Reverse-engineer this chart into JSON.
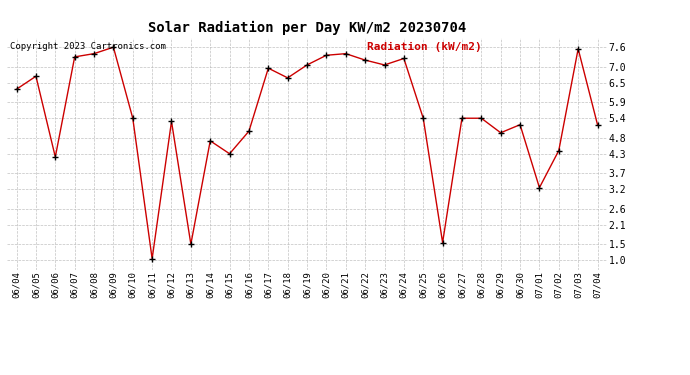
{
  "title": "Solar Radiation per Day KW/m2 20230704",
  "copyright": "Copyright 2023 Cartronics.com",
  "legend_label": "Radiation (kW/m2)",
  "dates": [
    "06/04",
    "06/05",
    "06/06",
    "06/07",
    "06/08",
    "06/09",
    "06/10",
    "06/11",
    "06/12",
    "06/13",
    "06/14",
    "06/15",
    "06/16",
    "06/17",
    "06/18",
    "06/19",
    "06/20",
    "06/21",
    "06/22",
    "06/23",
    "06/24",
    "06/25",
    "06/26",
    "06/27",
    "06/28",
    "06/29",
    "06/30",
    "07/01",
    "07/02",
    "07/03",
    "07/04"
  ],
  "values": [
    6.3,
    6.7,
    4.2,
    7.3,
    7.4,
    7.6,
    5.4,
    1.05,
    5.3,
    1.5,
    4.7,
    4.3,
    5.0,
    6.95,
    6.65,
    7.05,
    7.35,
    7.4,
    7.2,
    7.05,
    7.25,
    5.4,
    1.55,
    5.4,
    5.4,
    4.95,
    5.2,
    3.25,
    4.4,
    7.55,
    5.2
  ],
  "line_color": "#cc0000",
  "marker_color": "#000000",
  "background_color": "#ffffff",
  "grid_color": "#bbbbbb",
  "title_color": "#000000",
  "copyright_color": "#000000",
  "legend_color": "#cc0000",
  "ylim": [
    0.7,
    7.9
  ],
  "yticks": [
    1.0,
    1.5,
    2.1,
    2.6,
    3.2,
    3.7,
    4.3,
    4.8,
    5.4,
    5.9,
    6.5,
    7.0,
    7.6
  ]
}
